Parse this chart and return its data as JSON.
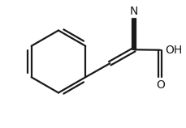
{
  "bg_color": "#ffffff",
  "line_color": "#1a1a1a",
  "line_width": 1.6,
  "bond_color": "#1a1a1a",
  "text_color": "#1a1a1a",
  "font_size": 9,
  "figsize": [
    2.3,
    1.58
  ],
  "dpi": 100,
  "xlim": [
    0,
    2.3
  ],
  "ylim": [
    0,
    1.58
  ]
}
